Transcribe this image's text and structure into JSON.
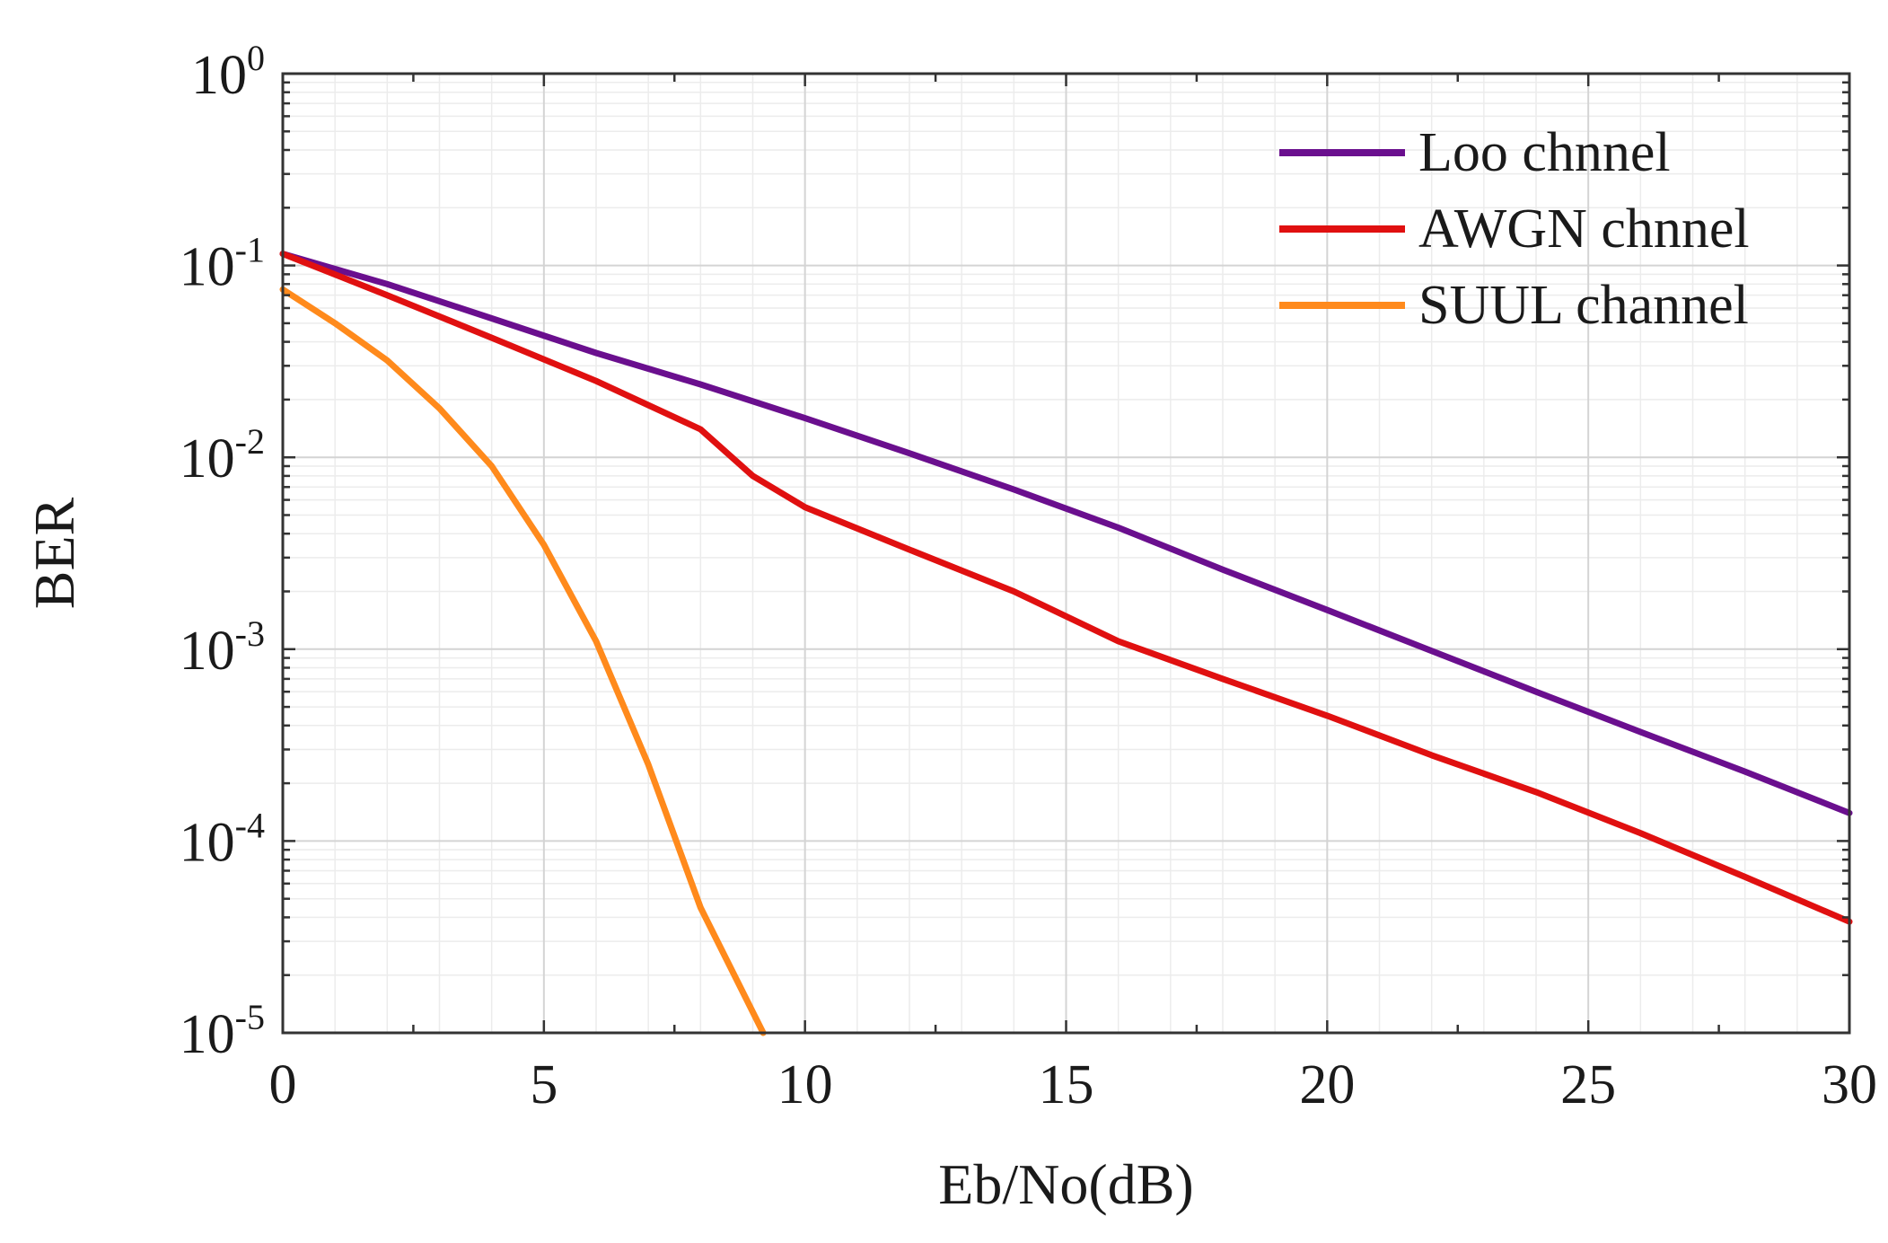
{
  "chart_data": {
    "type": "line",
    "title": "",
    "xlabel": "Eb/No(dB)",
    "ylabel": "BER",
    "yscale": "log",
    "xlim": [
      0,
      30
    ],
    "ylim": [
      1e-05,
      1
    ],
    "grid": true,
    "legend_position": "top-right",
    "x_ticks": [
      "0",
      "5",
      "10",
      "15",
      "20",
      "25",
      "30"
    ],
    "y_ticks": [
      {
        "base": "10",
        "exp": "0"
      },
      {
        "base": "10",
        "exp": "-1"
      },
      {
        "base": "10",
        "exp": "-2"
      },
      {
        "base": "10",
        "exp": "-3"
      },
      {
        "base": "10",
        "exp": "-4"
      },
      {
        "base": "10",
        "exp": "-5"
      }
    ],
    "series": [
      {
        "name": "Loo chnnel",
        "color": "#6a0f8e",
        "x": [
          0,
          2,
          4,
          6,
          8,
          10,
          12,
          14,
          16,
          18,
          20,
          22,
          24,
          26,
          28,
          30
        ],
        "y": [
          0.115,
          0.08,
          0.053,
          0.035,
          0.024,
          0.016,
          0.0105,
          0.0068,
          0.0043,
          0.0026,
          0.0016,
          0.00098,
          0.0006,
          0.00037,
          0.00023,
          0.00014
        ]
      },
      {
        "name": "AWGN chnnel",
        "color": "#e01010",
        "x": [
          0,
          2,
          4,
          6,
          8,
          9,
          10,
          12,
          14,
          16,
          18,
          20,
          22,
          24,
          26,
          28,
          30
        ],
        "y": [
          0.115,
          0.07,
          0.042,
          0.025,
          0.014,
          0.008,
          0.0055,
          0.0033,
          0.002,
          0.0011,
          0.0007,
          0.00045,
          0.00028,
          0.00018,
          0.00011,
          6.5e-05,
          3.8e-05
        ]
      },
      {
        "name": "SUUL channel",
        "color": "#ff8a1c",
        "x": [
          0,
          1,
          2,
          3,
          4,
          5,
          6,
          7,
          8,
          9.2
        ],
        "y": [
          0.075,
          0.05,
          0.032,
          0.018,
          0.009,
          0.0035,
          0.0011,
          0.00025,
          4.5e-05,
          1e-05
        ]
      }
    ]
  }
}
